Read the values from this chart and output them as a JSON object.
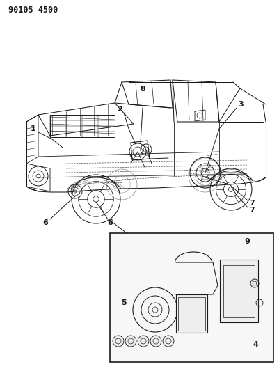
{
  "title": "90105 4500",
  "bg_color": "#ffffff",
  "line_color": "#1a1a1a",
  "lw": 0.75,
  "fig_w": 4.02,
  "fig_h": 5.33,
  "dpi": 100
}
